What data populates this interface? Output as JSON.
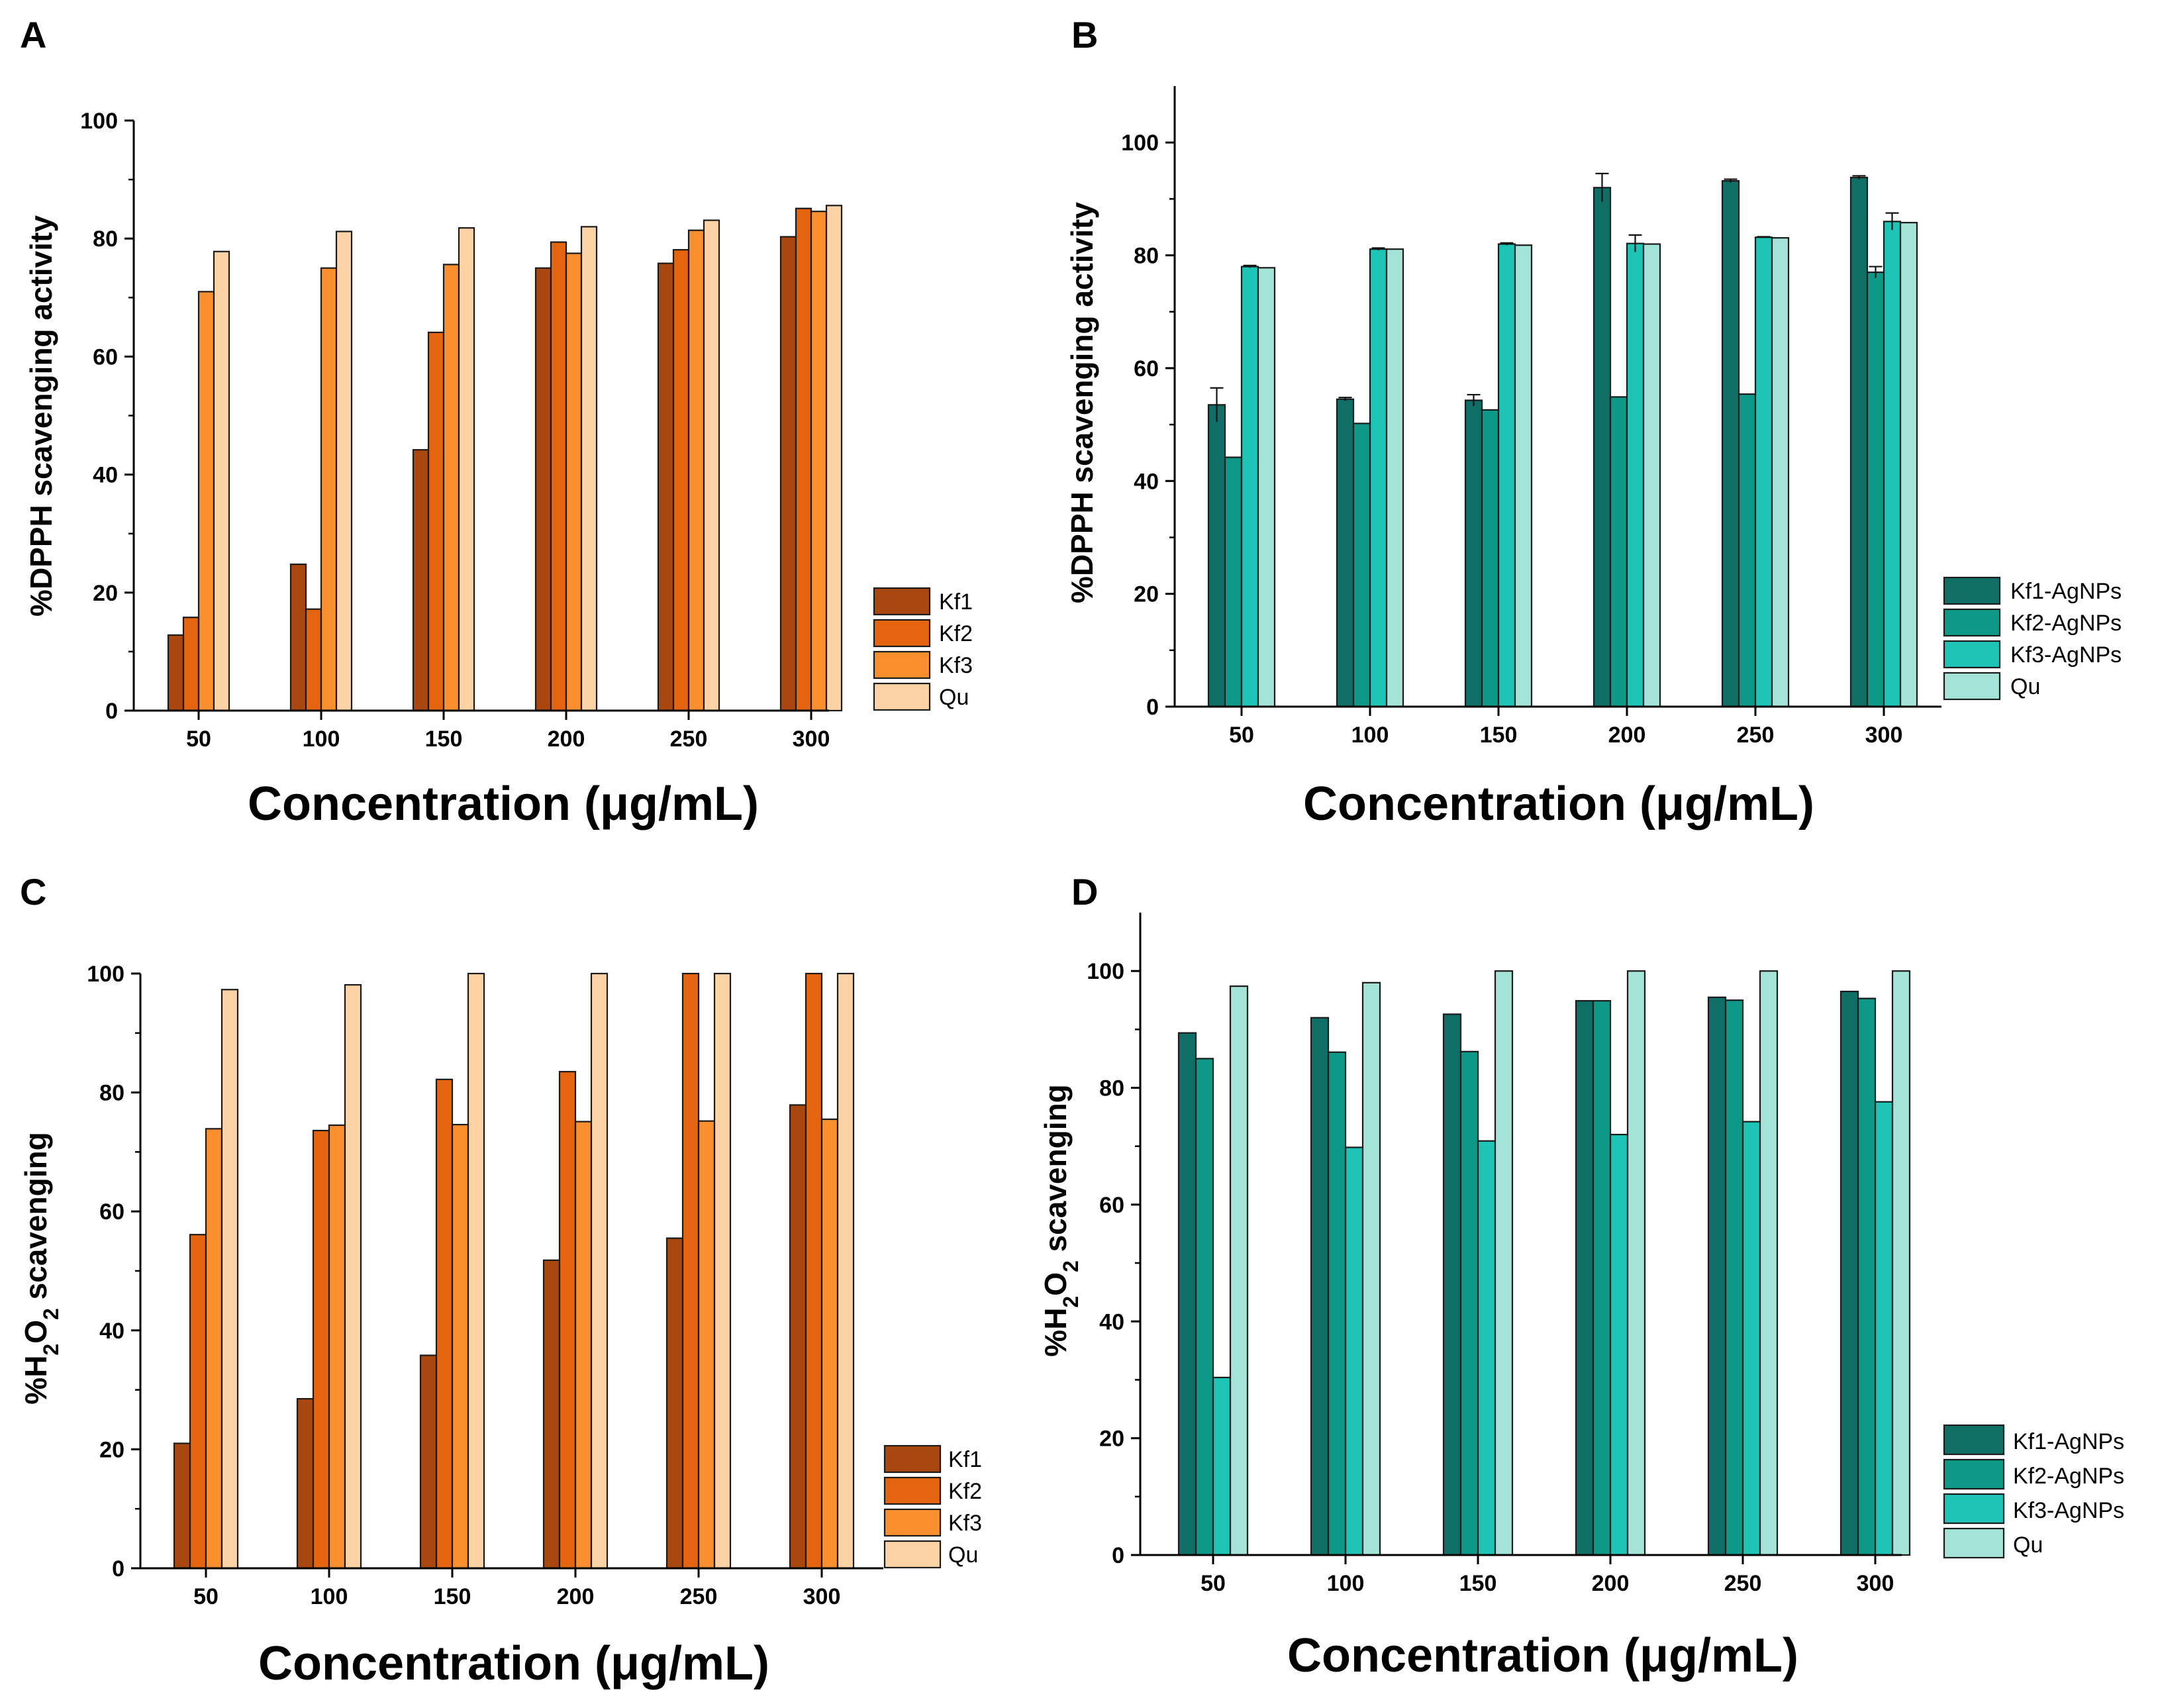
{
  "chart_data": [
    {
      "panel": "A",
      "type": "bar",
      "categories": [
        "50",
        "100",
        "150",
        "200",
        "250",
        "300"
      ],
      "xlabel": "Concentration (μg/mL)",
      "ylabel": "%DPPH scavenging activity",
      "ylim": [
        0,
        100
      ],
      "yticks": [
        0,
        20,
        40,
        60,
        80,
        100
      ],
      "legend": "bottom-right",
      "series": [
        {
          "name": "Kf1",
          "color": "#A8470F",
          "values": [
            12.8,
            24.8,
            44.2,
            75.0,
            75.8,
            80.3
          ]
        },
        {
          "name": "Kf2",
          "color": "#E4640F",
          "values": [
            15.8,
            17.2,
            64.1,
            79.4,
            78.1,
            85.1
          ]
        },
        {
          "name": "Kf3",
          "color": "#F98F2F",
          "values": [
            71.0,
            75.0,
            75.6,
            77.5,
            81.4,
            84.6
          ]
        },
        {
          "name": "Qu",
          "color": "#FDD3A6",
          "values": [
            77.8,
            81.2,
            81.8,
            82.0,
            83.1,
            85.6
          ]
        }
      ]
    },
    {
      "panel": "B",
      "type": "bar",
      "categories": [
        "50",
        "100",
        "150",
        "200",
        "250",
        "300"
      ],
      "xlabel": "Concentration (μg/mL)",
      "ylabel": "%DPPH scavenging activity",
      "ylim": [
        0,
        110
      ],
      "yticks": [
        0,
        20,
        40,
        60,
        80,
        100
      ],
      "legend": "bottom-right",
      "series": [
        {
          "name": "Kf1-AgNPs",
          "color": "#0F6E66",
          "values": [
            53.5,
            54.5,
            54.3,
            92.0,
            93.2,
            93.8
          ],
          "errors": [
            3.0,
            0.3,
            1.0,
            2.5,
            0.3,
            0.3
          ]
        },
        {
          "name": "Kf2-AgNPs",
          "color": "#0E9888",
          "values": [
            44.2,
            50.2,
            52.6,
            54.9,
            55.4,
            77.0
          ],
          "errors": [
            0,
            0,
            0,
            0,
            0,
            1.0
          ]
        },
        {
          "name": "Kf3-AgNPs",
          "color": "#1EC4B5",
          "values": [
            78.0,
            81.1,
            82.0,
            82.1,
            83.2,
            86.0
          ],
          "errors": [
            0.2,
            0.2,
            0.2,
            1.5,
            0.1,
            1.5
          ]
        },
        {
          "name": "Qu",
          "color": "#A4E3D7",
          "values": [
            77.8,
            81.1,
            81.8,
            82.0,
            83.1,
            85.8
          ],
          "errors": [
            0,
            0,
            0,
            0,
            0,
            0
          ]
        }
      ]
    },
    {
      "panel": "C",
      "type": "bar",
      "categories": [
        "50",
        "100",
        "150",
        "200",
        "250",
        "300"
      ],
      "xlabel": "Concentration (μg/mL)",
      "ylabel_parts": [
        "%H",
        "2",
        "O",
        "2",
        " scavenging"
      ],
      "ylim": [
        0,
        100
      ],
      "yticks": [
        0,
        20,
        40,
        60,
        80,
        100
      ],
      "legend": "bottom-right",
      "series": [
        {
          "name": "Kf1",
          "color": "#A8470F",
          "values": [
            21.0,
            28.5,
            35.8,
            51.8,
            55.5,
            77.9
          ]
        },
        {
          "name": "Kf2",
          "color": "#E4640F",
          "values": [
            56.1,
            73.6,
            82.2,
            83.5,
            100.0,
            100.0
          ]
        },
        {
          "name": "Kf3",
          "color": "#F98F2F",
          "values": [
            73.9,
            74.5,
            74.6,
            75.1,
            75.2,
            75.5
          ]
        },
        {
          "name": "Qu",
          "color": "#FDD3A6",
          "values": [
            97.3,
            98.1,
            100.0,
            100.0,
            100.0,
            100.0
          ]
        }
      ]
    },
    {
      "panel": "D",
      "type": "bar",
      "categories": [
        "50",
        "100",
        "150",
        "200",
        "250",
        "300"
      ],
      "xlabel": "Concentration (μg/mL)",
      "ylabel_parts": [
        "%H",
        "2",
        "O",
        "2",
        " scavenging"
      ],
      "ylim": [
        0,
        110
      ],
      "yticks": [
        0,
        20,
        40,
        60,
        80,
        100
      ],
      "legend": "bottom-right",
      "series": [
        {
          "name": "Kf1-AgNPs",
          "color": "#0F6E66",
          "values": [
            89.4,
            92.0,
            92.6,
            94.9,
            95.5,
            96.5
          ]
        },
        {
          "name": "Kf2-AgNPs",
          "color": "#0E9888",
          "values": [
            85.0,
            86.1,
            86.2,
            94.9,
            95.0,
            95.3
          ]
        },
        {
          "name": "Kf3-AgNPs",
          "color": "#1EC4B5",
          "values": [
            30.4,
            69.8,
            70.9,
            72.0,
            74.2,
            77.6
          ]
        },
        {
          "name": "Qu",
          "color": "#A4E3D7",
          "values": [
            97.4,
            98.0,
            100.0,
            100.0,
            100.0,
            100.0
          ]
        }
      ]
    }
  ]
}
